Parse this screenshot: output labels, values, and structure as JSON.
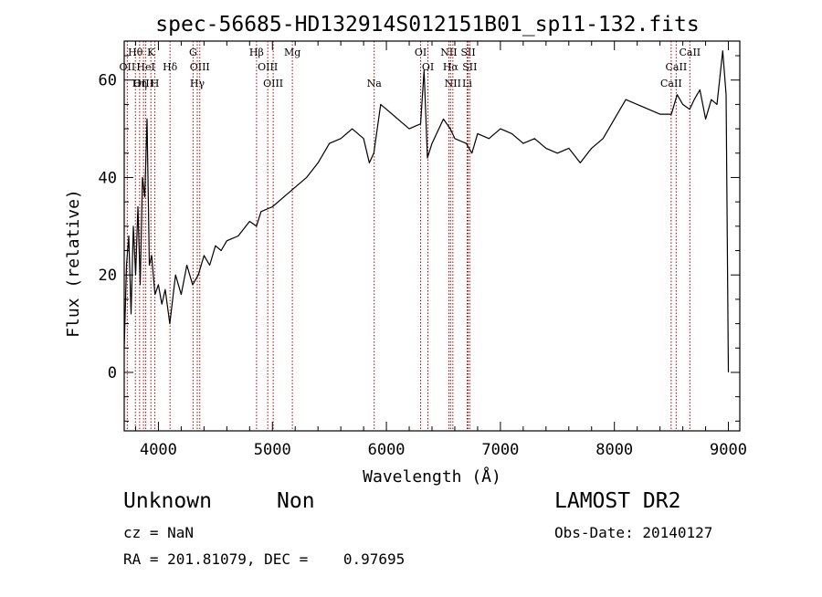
{
  "chart_data": {
    "type": "line",
    "title": "spec-56685-HD132914S012151B01_sp11-132.fits",
    "xlabel": "Wavelength (Å)",
    "ylabel": "Flux (relative)",
    "xlim": [
      3700,
      9100
    ],
    "ylim": [
      -12,
      68
    ],
    "x_ticks": [
      4000,
      5000,
      6000,
      7000,
      8000,
      9000
    ],
    "x_tick_labels": [
      "4000",
      "5000",
      "6000",
      "7000",
      "8000",
      "9000"
    ],
    "y_ticks": [
      0,
      20,
      40,
      60
    ],
    "y_tick_labels": [
      "0",
      "20",
      "40",
      "60"
    ],
    "grid": false,
    "legend": "none",
    "line_color": "#000000",
    "marker_color": "#b00000",
    "series": [
      {
        "x": [
          3700,
          3720,
          3740,
          3760,
          3780,
          3800,
          3820,
          3840,
          3860,
          3880,
          3900,
          3920,
          3940,
          3970,
          4000,
          4030,
          4060,
          4100,
          4150,
          4200,
          4250,
          4300,
          4350,
          4400,
          4450,
          4500,
          4550,
          4600,
          4700,
          4800,
          4860,
          4900,
          5000,
          5100,
          5200,
          5300,
          5400,
          5500,
          5600,
          5700,
          5800,
          5850,
          5890,
          5950,
          6000,
          6100,
          6200,
          6300,
          6330,
          6360,
          6400,
          6500,
          6560,
          6600,
          6700,
          6750,
          6800,
          6900,
          7000,
          7100,
          7200,
          7300,
          7400,
          7500,
          7600,
          7700,
          7800,
          7900,
          8000,
          8100,
          8200,
          8300,
          8400,
          8500,
          8550,
          8600,
          8660,
          8700,
          8750,
          8800,
          8850,
          8900,
          8950,
          8980,
          9000
        ],
        "y": [
          5,
          22,
          28,
          12,
          30,
          20,
          34,
          18,
          40,
          36,
          52,
          22,
          24,
          16,
          18,
          14,
          17,
          10,
          20,
          16,
          22,
          18,
          20,
          24,
          22,
          26,
          25,
          27,
          28,
          31,
          30,
          33,
          34,
          36,
          38,
          40,
          43,
          47,
          48,
          50,
          48,
          43,
          45,
          55,
          54,
          52,
          50,
          51,
          62,
          44,
          47,
          52,
          50,
          48,
          47,
          45,
          49,
          48,
          50,
          49,
          47,
          48,
          46,
          45,
          46,
          43,
          46,
          48,
          52,
          56,
          55,
          54,
          53,
          53,
          57,
          55,
          54,
          56,
          58,
          52,
          56,
          55,
          66,
          57,
          0
        ]
      }
    ],
    "line_markers": [
      {
        "label": "Hθ",
        "x": 3798,
        "row": 0
      },
      {
        "label": "OII",
        "x": 3727,
        "row": 1
      },
      {
        "label": "OIII",
        "x": 3869,
        "row": 2
      },
      {
        "label": "HeI",
        "x": 3889,
        "row": 1
      },
      {
        "label": "Hη",
        "x": 3835,
        "row": 2
      },
      {
        "label": "K",
        "x": 3934,
        "row": 0
      },
      {
        "label": "H",
        "x": 3969,
        "row": 2
      },
      {
        "label": "Hδ",
        "x": 4102,
        "row": 1
      },
      {
        "label": "G",
        "x": 4304,
        "row": 0
      },
      {
        "label": "OIII",
        "x": 4363,
        "row": 1
      },
      {
        "label": "Hγ",
        "x": 4341,
        "row": 2
      },
      {
        "label": "Hβ",
        "x": 4861,
        "row": 0
      },
      {
        "label": "OIII",
        "x": 4959,
        "row": 1
      },
      {
        "label": "OIII",
        "x": 5007,
        "row": 2
      },
      {
        "label": "Mg",
        "x": 5175,
        "row": 0
      },
      {
        "label": "Na",
        "x": 5893,
        "row": 2
      },
      {
        "label": "OI",
        "x": 6300,
        "row": 0
      },
      {
        "label": "OI",
        "x": 6364,
        "row": 1
      },
      {
        "label": "NII",
        "x": 6548,
        "row": 0
      },
      {
        "label": "Hα",
        "x": 6563,
        "row": 1
      },
      {
        "label": "NII",
        "x": 6583,
        "row": 2
      },
      {
        "label": "SII",
        "x": 6717,
        "row": 0
      },
      {
        "label": "SII",
        "x": 6731,
        "row": 1
      },
      {
        "label": "Li",
        "x": 6708,
        "row": 2
      },
      {
        "label": "CaII",
        "x": 8662,
        "row": 0
      },
      {
        "label": "CaII",
        "x": 8542,
        "row": 1
      },
      {
        "label": "CaII",
        "x": 8498,
        "row": 2
      }
    ]
  },
  "info": {
    "class_label": "Unknown",
    "subclass_label": "Non",
    "survey": "LAMOST DR2",
    "cz": "cz = NaN",
    "obs_date": "Obs-Date: 20140127",
    "coords": "RA = 201.81079, DEC =    0.97695"
  }
}
